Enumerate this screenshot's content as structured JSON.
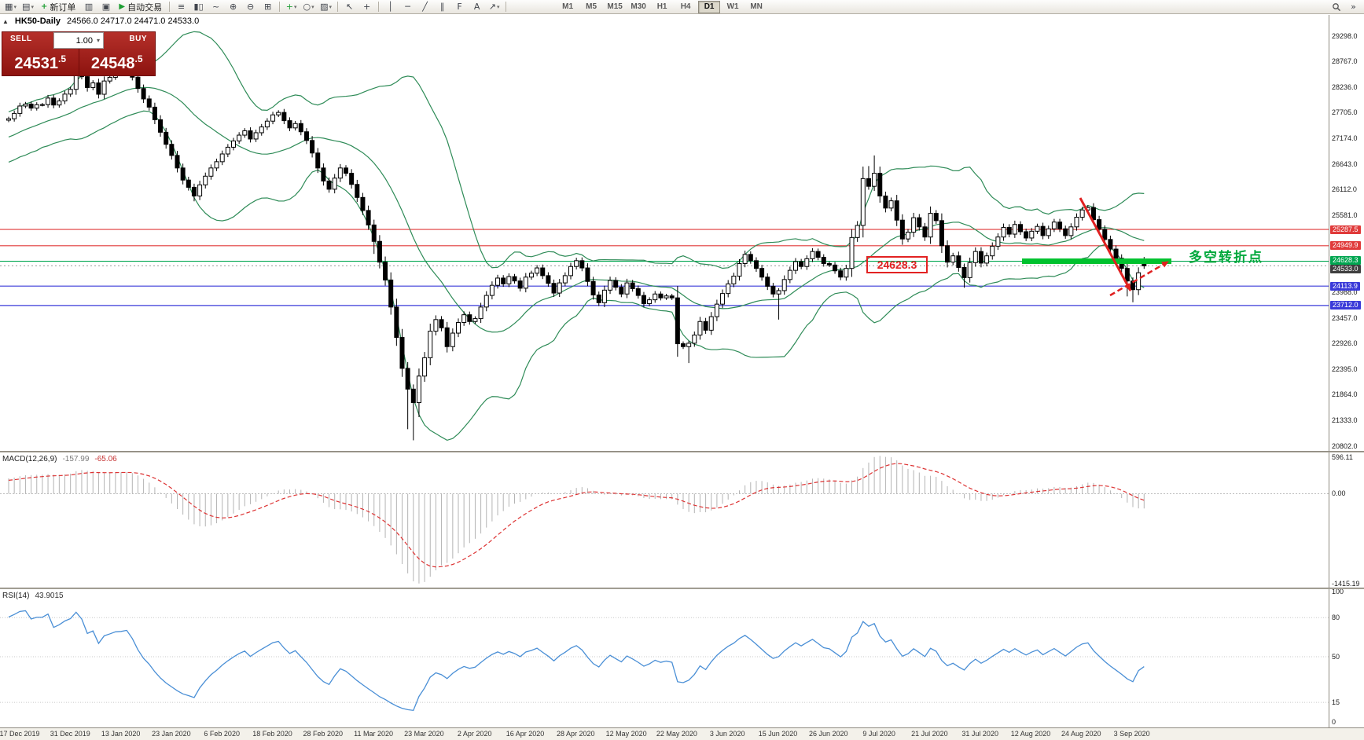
{
  "toolbar": {
    "new_order_label": "新订单",
    "autotrading_label": "自动交易",
    "timeframes": [
      "M1",
      "M5",
      "M15",
      "M30",
      "H1",
      "H4",
      "D1",
      "W1",
      "MN"
    ],
    "active_timeframe": "D1",
    "items": [
      {
        "t": "icon",
        "name": "new-chart",
        "g": "▦",
        "caret": true
      },
      {
        "t": "icon",
        "name": "profiles",
        "g": "▤",
        "caret": true
      },
      {
        "t": "btn",
        "name": "new-order",
        "g": "+",
        "gc": "#1d9e33",
        "label_key": "new_order_label"
      },
      {
        "t": "icon",
        "name": "market-watch",
        "g": "▥"
      },
      {
        "t": "icon",
        "name": "data-window",
        "g": "▣"
      },
      {
        "t": "btn",
        "name": "autotrading",
        "g": "▶",
        "gc": "#1d9e33",
        "label_key": "autotrading_label"
      },
      {
        "t": "sep"
      },
      {
        "t": "icon",
        "name": "bar-chart",
        "g": "≡"
      },
      {
        "t": "icon",
        "name": "candlestick-chart",
        "g": "▮▯"
      },
      {
        "t": "icon",
        "name": "line-chart",
        "g": "~"
      },
      {
        "t": "icon",
        "name": "zoom-in",
        "g": "⊕"
      },
      {
        "t": "icon",
        "name": "zoom-out",
        "g": "⊖"
      },
      {
        "t": "icon",
        "name": "tile-windows",
        "g": "⊞"
      },
      {
        "t": "sep"
      },
      {
        "t": "icon",
        "name": "indicators",
        "g": "+",
        "gc": "#1d9e33",
        "caret": true
      },
      {
        "t": "icon",
        "name": "periods",
        "g": "○",
        "caret": true
      },
      {
        "t": "icon",
        "name": "templates",
        "g": "▨",
        "caret": true
      },
      {
        "t": "sep"
      },
      {
        "t": "icon",
        "name": "cursor",
        "g": "↖"
      },
      {
        "t": "icon",
        "name": "crosshair",
        "g": "+"
      },
      {
        "t": "sep"
      },
      {
        "t": "icon",
        "name": "vertical-line",
        "g": "│"
      },
      {
        "t": "icon",
        "name": "horizontal-line",
        "g": "─"
      },
      {
        "t": "icon",
        "name": "trendline",
        "g": "╱"
      },
      {
        "t": "icon",
        "name": "equidistant-channel",
        "g": "∥"
      },
      {
        "t": "icon",
        "name": "fibonacci",
        "g": "F"
      },
      {
        "t": "icon",
        "name": "text-label",
        "g": "A"
      },
      {
        "t": "icon",
        "name": "arrow-object",
        "g": "↗",
        "caret": true
      },
      {
        "t": "sep"
      },
      {
        "t": "timeframes"
      },
      {
        "t": "spacer"
      },
      {
        "t": "icon",
        "name": "search",
        "svg": "magnifier"
      },
      {
        "t": "icon",
        "name": "toolbar-overflow",
        "g": "»"
      }
    ]
  },
  "chart": {
    "collapse_icon": "▲",
    "title_symbol": "HK50-Daily",
    "title_ohlc": "24566.0 24717.0 24471.0 24533.0"
  },
  "trade_panel": {
    "sell_label": "SELL",
    "buy_label": "BUY",
    "volume": "1.00",
    "volume_caret_icon": "▾",
    "sell_price_main": "24531",
    "sell_price_frac": ".5",
    "buy_price_main": "24548",
    "buy_price_frac": ".5"
  },
  "chart_data": {
    "type": "candlestick",
    "symbol": "HK50",
    "period": "Daily",
    "ohlc_today": {
      "open": 24566.0,
      "high": 24717.0,
      "low": 24471.0,
      "close": 24533.0
    },
    "price_range": [
      20700,
      29730
    ],
    "y_ticks": [
      29298.0,
      28767.0,
      28236.0,
      27705.0,
      27174.0,
      26643.0,
      26112.0,
      25581.0,
      23988.0,
      23457.0,
      22926.0,
      22395.0,
      21864.0,
      21333.0,
      20802.0
    ],
    "levels": [
      {
        "price": 25287.5,
        "color": "#e03a3a",
        "label_bg": "#e03a3a"
      },
      {
        "price": 24949.9,
        "color": "#e03a3a",
        "label_bg": "#e03a3a"
      },
      {
        "price": 24628.3,
        "color": "#00a650",
        "label_bg": "#00a650"
      },
      {
        "price": 24113.9,
        "color": "#3a3ad9",
        "label_bg": "#3a3ad9"
      },
      {
        "price": 23712.0,
        "color": "#3a3ad9",
        "label_bg": "#3a3ad9"
      }
    ],
    "current_price": 24533.0,
    "current_price_bg": "#3f3f3f",
    "x_labels": [
      "17 Dec 2019",
      "31 Dec 2019",
      "13 Jan 2020",
      "23 Jan 2020",
      "6 Feb 2020",
      "18 Feb 2020",
      "28 Feb 2020",
      "11 Mar 2020",
      "23 Mar 2020",
      "2 Apr 2020",
      "16 Apr 2020",
      "28 Apr 2020",
      "12 May 2020",
      "22 May 2020",
      "3 Jun 2020",
      "15 Jun 2020",
      "26 Jun 2020",
      "9 Jul 2020",
      "21 Jul 2020",
      "31 Jul 2020",
      "12 Aug 2020",
      "24 Aug 2020",
      "3 Sep 2020"
    ],
    "context_closes_before_view": [
      26650,
      26750,
      26700,
      26850,
      26900,
      27000,
      26950,
      27100,
      27150,
      27250,
      27200,
      27300,
      27250,
      27350,
      27400,
      27350,
      27450,
      27500,
      27450,
      27550
    ],
    "first_open": 27550,
    "last_open": 24566,
    "closes": [
      27580,
      27690,
      27843,
      27884,
      27800,
      27871,
      27872,
      28008,
      27864,
      27949,
      28090,
      28189,
      28543,
      28451,
      28226,
      28322,
      28087,
      28361,
      28438,
      28524,
      28540,
      28583,
      28440,
      28206,
      27990,
      27820,
      27560,
      27300,
      27050,
      26820,
      26560,
      26310,
      26160,
      25980,
      26210,
      26390,
      26560,
      26690,
      26850,
      26990,
      27120,
      27240,
      27330,
      27160,
      27290,
      27410,
      27530,
      27660,
      27710,
      27540,
      27390,
      27480,
      27310,
      27130,
      26870,
      26560,
      26290,
      26120,
      26350,
      26560,
      26450,
      26220,
      25950,
      25680,
      25380,
      25040,
      24610,
      24240,
      23680,
      23050,
      22410,
      21980,
      21700,
      22250,
      22630,
      23180,
      23420,
      23250,
      22860,
      23140,
      23360,
      23520,
      23380,
      23440,
      23680,
      23920,
      24130,
      24280,
      24160,
      24310,
      24220,
      24070,
      24300,
      24380,
      24490,
      24330,
      24170,
      23970,
      24180,
      24330,
      24520,
      24640,
      24490,
      24210,
      23930,
      23770,
      24030,
      24230,
      24090,
      23950,
      24180,
      24060,
      23920,
      23750,
      23830,
      23950,
      23870,
      23910,
      23870,
      22920,
      22860,
      22930,
      23100,
      23380,
      23200,
      23480,
      23740,
      23960,
      24160,
      24320,
      24580,
      24770,
      24640,
      24480,
      24300,
      24110,
      23950,
      24020,
      24250,
      24440,
      24620,
      24520,
      24680,
      24830,
      24710,
      24580,
      24550,
      24430,
      24300,
      24480,
      25120,
      25370,
      26340,
      26180,
      26450,
      25980,
      25730,
      25880,
      25480,
      25090,
      25230,
      25530,
      25340,
      25130,
      25620,
      25470,
      24950,
      24610,
      24740,
      24500,
      24290,
      24600,
      24830,
      24590,
      24740,
      24940,
      25130,
      25330,
      25190,
      25390,
      25240,
      25110,
      25250,
      25350,
      25160,
      25300,
      25440,
      25300,
      25160,
      25340,
      25540,
      25690,
      25740,
      25490,
      25290,
      25080,
      24880,
      24690,
      24480,
      24220,
      24040,
      24390,
      24533
    ],
    "wick_overrides": {
      "20": [
        28700,
        null
      ],
      "22": [
        28690,
        null
      ],
      "33": [
        null,
        25870
      ],
      "65": [
        null,
        24780
      ],
      "71": [
        null,
        21150
      ],
      "72": [
        null,
        20920
      ],
      "73": [
        null,
        21400
      ],
      "119": [
        null,
        22650
      ],
      "121": [
        null,
        22520
      ],
      "137": [
        null,
        23420
      ],
      "153": [
        26600,
        null
      ],
      "154": [
        26820,
        null
      ],
      "170": [
        null,
        24080
      ],
      "199": [
        null,
        23900
      ],
      "200": [
        null,
        23780
      ],
      "202": [
        24717,
        24471
      ]
    },
    "candle_colors": {
      "up_fill": "#ffffff",
      "down_fill": "#000000",
      "outline": "#000000"
    },
    "overlays": {
      "bollinger": {
        "period": 20,
        "deviation": 2,
        "color": "#2e8b57"
      }
    },
    "indicators": {
      "macd": {
        "label": "MACD(12,26,9)",
        "value_main": "-157.99",
        "value_signal": "-65.06",
        "axis_labels": [
          "596.11",
          "0.00",
          "-1415.19"
        ],
        "axis_values": [
          596.11,
          0,
          -1415.19
        ],
        "range": [
          -1480,
          650
        ],
        "histogram_color": "#b4b4b4",
        "signal_color": "#dd3333"
      },
      "rsi": {
        "label": "RSI(14)",
        "value": "43.9015",
        "levels": [
          100,
          80,
          50,
          15,
          0
        ],
        "dotted_levels": [
          80,
          50,
          15
        ],
        "color": "#4a8fd6",
        "range": [
          0,
          100
        ]
      }
    },
    "annotations": {
      "price_box_text": "24628.3",
      "turning_point_text": "多空转折点",
      "colors": {
        "box": "#e22222",
        "bar": "#00c22e",
        "arrow": "#e02020",
        "text": "#00a83c"
      }
    }
  }
}
